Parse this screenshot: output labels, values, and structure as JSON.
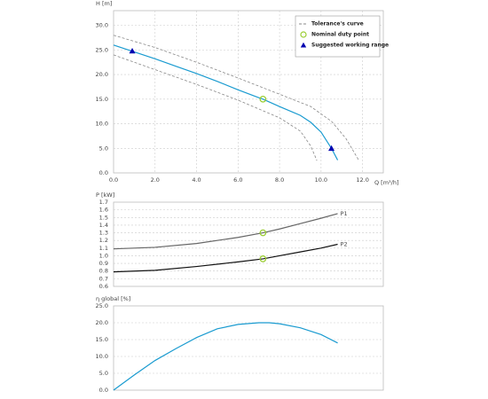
{
  "chart_data": [
    {
      "type": "line",
      "ylabel": "H [m]",
      "xlabel": "Q [m³/h]",
      "xlim": [
        0,
        13
      ],
      "ylim": [
        0,
        33
      ],
      "xticks": [
        {
          "value": 0,
          "label": "0.0"
        },
        {
          "value": 2,
          "label": "2.0"
        },
        {
          "value": 4,
          "label": "4.0"
        },
        {
          "value": 6,
          "label": "6.0"
        },
        {
          "value": 8,
          "label": "8.0"
        },
        {
          "value": 10,
          "label": "10.0"
        },
        {
          "value": 12,
          "label": "12.0"
        }
      ],
      "yticks": [
        {
          "value": 0,
          "label": "0.0"
        },
        {
          "value": 5,
          "label": "5.0"
        },
        {
          "value": 10,
          "label": "10.0"
        },
        {
          "value": 15,
          "label": "15.0"
        },
        {
          "value": 20,
          "label": "20.0"
        },
        {
          "value": 25,
          "label": "25.0"
        },
        {
          "value": 30,
          "label": "30.0"
        }
      ],
      "grid": true,
      "legend": "top-right",
      "series": [
        {
          "name": "Tolerance's curve",
          "color": "#888888",
          "style": "dashed",
          "x": [
            0,
            2,
            4,
            6,
            8,
            9.5,
            10.5,
            11.2,
            11.8
          ],
          "values": [
            28.0,
            25.5,
            22.5,
            19.3,
            16.0,
            13.5,
            10.5,
            7.0,
            2.7
          ]
        },
        {
          "color": "#888888",
          "style": "dashed",
          "x": [
            0,
            2,
            4,
            6,
            8,
            9,
            9.5,
            9.8
          ],
          "values": [
            24.0,
            21.0,
            18.0,
            14.8,
            11.2,
            8.5,
            5.5,
            2.5
          ]
        },
        {
          "color": "#1a9bd0",
          "style": "solid",
          "x": [
            0,
            1,
            2,
            3,
            4,
            5,
            6,
            7,
            7.2,
            8,
            9,
            9.5,
            10,
            10.5,
            10.8
          ],
          "values": [
            26.0,
            24.6,
            23.2,
            21.7,
            20.2,
            18.6,
            16.9,
            15.3,
            15.0,
            13.5,
            11.7,
            10.3,
            8.3,
            5.0,
            2.6
          ]
        },
        {
          "name": "Nominal duty point",
          "color": "#9acd32",
          "marker": "circle",
          "x": [
            7.2
          ],
          "values": [
            15.0
          ]
        },
        {
          "name": "Suggested working range",
          "color": "#0000b0",
          "marker": "triangle",
          "x": [
            0.9,
            10.5
          ],
          "values": [
            24.8,
            5.0
          ]
        }
      ]
    },
    {
      "type": "line",
      "ylabel": "P [kW]",
      "xlim": [
        0,
        13
      ],
      "ylim": [
        0.6,
        1.7
      ],
      "yticks": [
        0.6,
        0.7,
        0.8,
        0.9,
        {
          "value": 1,
          "label": "1.0"
        },
        1.1,
        1.2,
        1.3,
        1.4,
        1.5,
        1.6,
        1.7
      ],
      "grid": true,
      "series_labels": "end",
      "series": [
        {
          "name": "P1",
          "color": "#666666",
          "style": "solid",
          "x": [
            0,
            2,
            4,
            6,
            7.2,
            8,
            9,
            10,
            10.8
          ],
          "values": [
            1.09,
            1.11,
            1.16,
            1.24,
            1.3,
            1.35,
            1.42,
            1.49,
            1.55
          ]
        },
        {
          "name": "P2",
          "color": "#111111",
          "style": "solid",
          "x": [
            0,
            2,
            4,
            6,
            7.2,
            8,
            9,
            10,
            10.8
          ],
          "values": [
            0.79,
            0.81,
            0.86,
            0.92,
            0.96,
            1.0,
            1.05,
            1.1,
            1.15
          ]
        },
        {
          "color": "#9acd32",
          "marker": "circle",
          "x": [
            7.2,
            7.2
          ],
          "values": [
            1.3,
            0.96
          ]
        }
      ]
    },
    {
      "type": "line",
      "ylabel": "η global [%]",
      "xlim": [
        0,
        13
      ],
      "ylim": [
        0,
        25
      ],
      "yticks": [
        {
          "value": 0,
          "label": "0.0"
        },
        {
          "value": 5,
          "label": "5.0"
        },
        {
          "value": 10,
          "label": "10.0"
        },
        {
          "value": 15,
          "label": "15.0"
        },
        {
          "value": 20,
          "label": "20.0"
        },
        {
          "value": 25,
          "label": "25.0"
        }
      ],
      "grid": true,
      "series": [
        {
          "color": "#1a9bd0",
          "style": "solid",
          "x": [
            0,
            1,
            2,
            3,
            4,
            5,
            6,
            7,
            7.5,
            8,
            9,
            10,
            10.8
          ],
          "values": [
            0,
            4.5,
            8.8,
            12.3,
            15.6,
            18.2,
            19.5,
            20.0,
            20.0,
            19.7,
            18.5,
            16.5,
            14.0
          ]
        }
      ]
    }
  ]
}
